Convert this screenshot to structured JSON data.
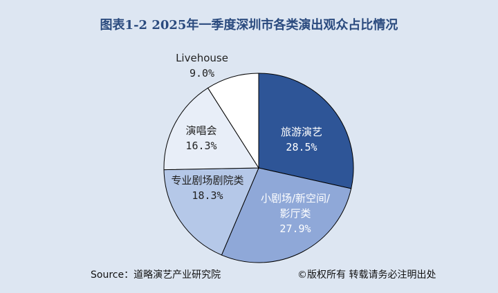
{
  "chart_data": {
    "type": "pie",
    "title": "图表1-2 2025年一季度深圳市各类演出观众占比情况",
    "start": "12 o'clock, clockwise",
    "slices": [
      {
        "label_lines": [
          "旅游演艺"
        ],
        "value": 28.5,
        "value_label": "28.5%",
        "color": "#2e5597",
        "text_color": "#ffffff"
      },
      {
        "label_lines": [
          "小剧场/新空间/",
          "影厅类"
        ],
        "value": 27.9,
        "value_label": "27.9%",
        "color": "#8fa8d8",
        "text_color": "#ffffff"
      },
      {
        "label_lines": [
          "专业剧场剧院类"
        ],
        "value": 18.3,
        "value_label": "18.3%",
        "color": "#b5c8e8",
        "text_color": "#222222"
      },
      {
        "label_lines": [
          "演唱会"
        ],
        "value": 16.3,
        "value_label": "16.3%",
        "color": "#e8eef8",
        "text_color": "#222222"
      },
      {
        "label_lines": [
          "Livehouse"
        ],
        "value": 9.0,
        "value_label": "9.0%",
        "color": "#ffffff",
        "text_color": "#222222"
      }
    ]
  },
  "footer": {
    "source": "Source：道略演艺产业研究院",
    "copyright": "©版权所有 转载请务必注明出处"
  }
}
